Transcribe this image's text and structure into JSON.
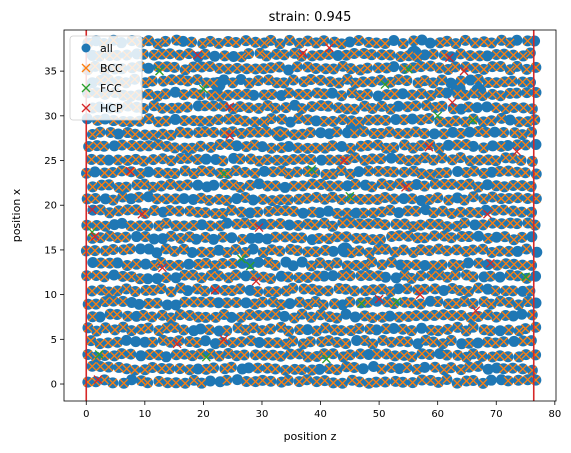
{
  "chart_data": {
    "type": "scatter",
    "title": "strain: 0.945",
    "xlabel": "position z",
    "ylabel": "position x",
    "xlim": [
      -3.8,
      80.2
    ],
    "ylim": [
      -1.9,
      39.6
    ],
    "xticks": [
      0,
      10,
      20,
      30,
      40,
      50,
      60,
      70,
      80
    ],
    "yticks": [
      0,
      5,
      10,
      15,
      20,
      25,
      30,
      35
    ],
    "grid": false,
    "legend_position": "upper-left",
    "boundary_lines": {
      "x": [
        0,
        76.4
      ],
      "color": "#d62728"
    },
    "colors": {
      "all": "#1f77b4",
      "BCC": "#ff7f0e",
      "FCC": "#2ca02c",
      "HCP": "#d62728"
    },
    "series": [
      {
        "name": "all",
        "marker": "circle",
        "lattice": {
          "x_start": 0.2,
          "x_step": 1.5,
          "x_count": 52,
          "y_start": 0.3,
          "y_step": 1.46,
          "y_count": 27,
          "jitter": 0.45
        },
        "extra_points": [
          [
            45.5,
            28.5
          ],
          [
            33.0,
            28.0
          ],
          [
            44.2,
            15.0
          ],
          [
            63.5,
            33.0
          ],
          [
            67.0,
            32.8
          ],
          [
            22.5,
            33.5
          ],
          [
            56.0,
            37.0
          ]
        ]
      },
      {
        "name": "BCC",
        "marker": "x",
        "lattice": {
          "x_start": 0.2,
          "x_step": 1.5,
          "x_count": 52,
          "y_start": 0.3,
          "y_step": 1.46,
          "y_count": 27,
          "jitter": 0.45,
          "keep_fraction": 0.86
        }
      },
      {
        "name": "FCC",
        "marker": "x",
        "points": [
          [
            2.2,
            3.3
          ],
          [
            20.5,
            3.0
          ],
          [
            41.0,
            2.8
          ],
          [
            47.0,
            9.0
          ],
          [
            53.0,
            9.2
          ],
          [
            23.5,
            23.5
          ],
          [
            28.0,
            13.2
          ],
          [
            26.5,
            14.0
          ],
          [
            51.0,
            33.5
          ],
          [
            55.0,
            35.2
          ],
          [
            38.5,
            24.0
          ],
          [
            45.0,
            21.0
          ],
          [
            1.0,
            17.0
          ],
          [
            12.5,
            35.0
          ],
          [
            20.0,
            33.0
          ],
          [
            60.0,
            30.0
          ],
          [
            66.0,
            29.5
          ],
          [
            75.0,
            12.0
          ]
        ]
      },
      {
        "name": "HCP",
        "marker": "x",
        "points": [
          [
            2.0,
            0.5
          ],
          [
            19.0,
            36.8
          ],
          [
            24.5,
            31.0
          ],
          [
            24.5,
            27.8
          ],
          [
            37.0,
            37.0
          ],
          [
            41.5,
            37.6
          ],
          [
            54.5,
            22.0
          ],
          [
            58.5,
            26.5
          ],
          [
            62.0,
            36.5
          ],
          [
            62.5,
            31.5
          ],
          [
            64.5,
            35.0
          ],
          [
            73.5,
            26.0
          ],
          [
            68.5,
            19.0
          ],
          [
            69.0,
            13.5
          ],
          [
            66.5,
            8.2
          ],
          [
            57.0,
            10.0
          ],
          [
            29.5,
            17.5
          ],
          [
            22.0,
            10.5
          ],
          [
            23.5,
            5.0
          ],
          [
            15.5,
            4.5
          ],
          [
            13.0,
            13.0
          ],
          [
            1.5,
            16.5
          ],
          [
            7.5,
            23.8
          ],
          [
            29.0,
            11.5
          ],
          [
            50.0,
            9.5
          ],
          [
            9.5,
            19.0
          ],
          [
            1.0,
            19.5
          ],
          [
            44.0,
            25.0
          ]
        ]
      }
    ]
  }
}
